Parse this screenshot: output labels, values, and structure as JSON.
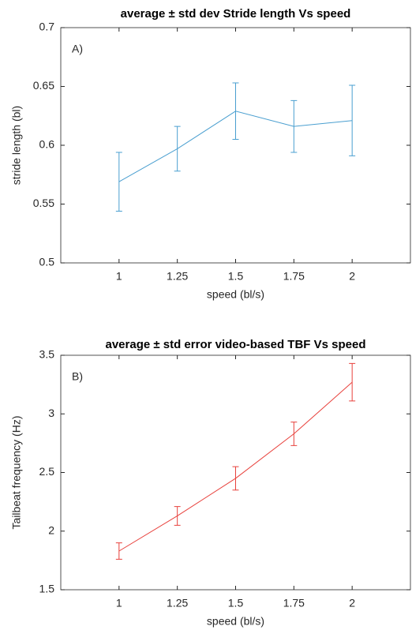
{
  "chart_data": [
    {
      "type": "line",
      "title": "average ± std dev Stride length Vs speed",
      "annotation": "A)",
      "xlabel": "speed (bl/s)",
      "ylabel": "stride length (bl)",
      "x": [
        1,
        1.25,
        1.5,
        1.75,
        2
      ],
      "values": [
        0.569,
        0.597,
        0.629,
        0.616,
        0.621
      ],
      "errors": [
        0.025,
        0.019,
        0.024,
        0.022,
        0.03
      ],
      "color": "#4a9fd0",
      "xlim": [
        0.75,
        2.25
      ],
      "xticks": [
        1,
        1.25,
        1.5,
        1.75,
        2
      ],
      "ylim": [
        0.5,
        0.7
      ],
      "yticks": [
        0.5,
        0.55,
        0.6,
        0.65,
        0.7
      ]
    },
    {
      "type": "line",
      "title": "average ± std error video-based TBF Vs speed",
      "annotation": "B)",
      "xlabel": "speed (bl/s)",
      "ylabel": "Tailbeat frequency (Hz)",
      "x": [
        1,
        1.25,
        1.5,
        1.75,
        2
      ],
      "values": [
        1.83,
        2.13,
        2.45,
        2.83,
        3.27
      ],
      "errors": [
        0.07,
        0.08,
        0.1,
        0.1,
        0.16
      ],
      "color": "#e8413c",
      "xlim": [
        0.75,
        2.25
      ],
      "xticks": [
        1,
        1.25,
        1.5,
        1.75,
        2
      ],
      "ylim": [
        1.5,
        3.5
      ],
      "yticks": [
        1.5,
        2,
        2.5,
        3,
        3.5
      ]
    }
  ]
}
